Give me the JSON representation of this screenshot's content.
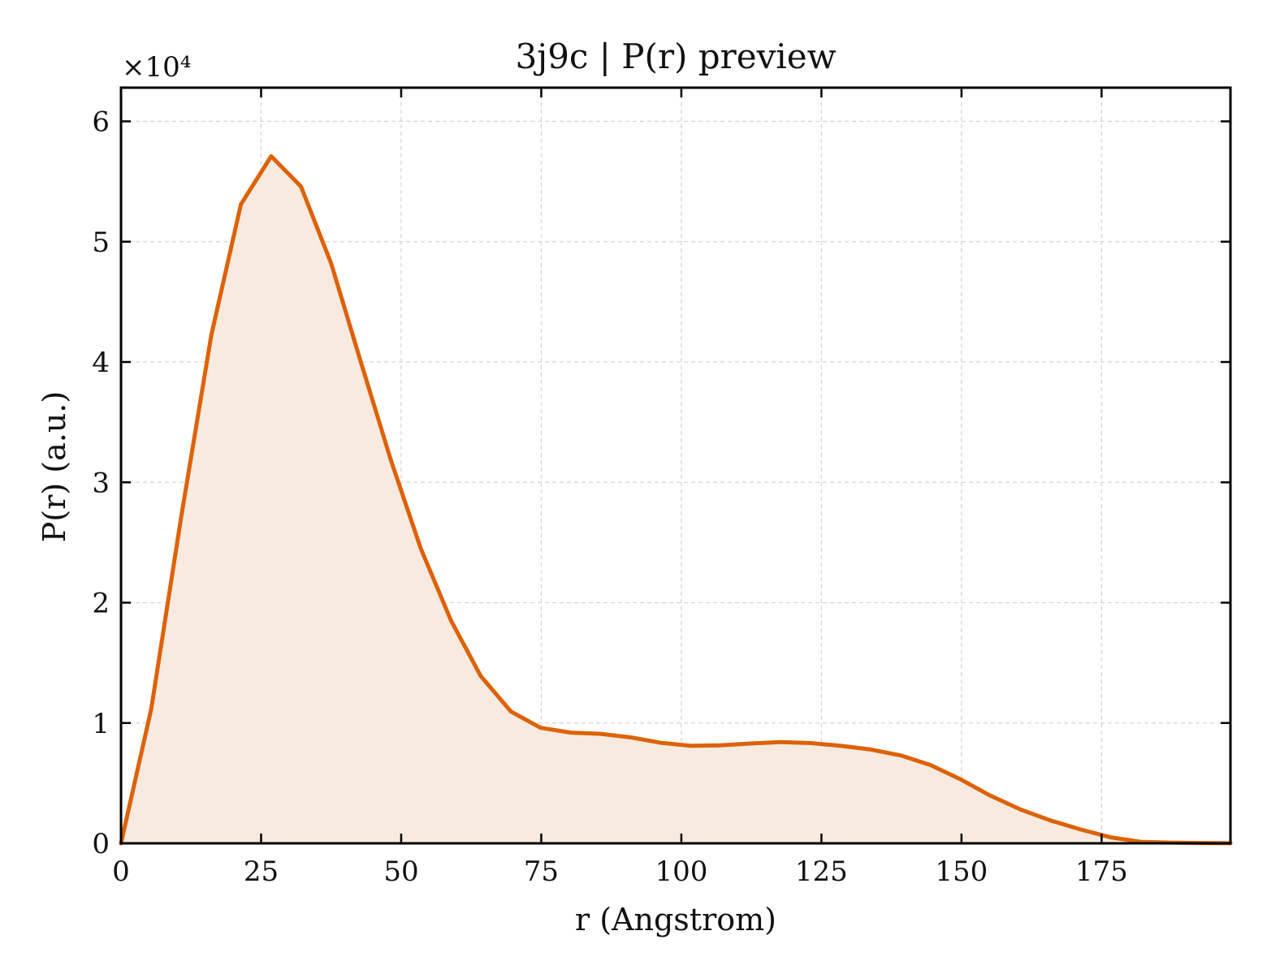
{
  "chart_data": {
    "type": "area",
    "title": "3j9c | P(r) preview",
    "xlabel": "r (Angstrom)",
    "ylabel": "P(r) (a.u.)",
    "y_multiplier_label": "×10⁴",
    "xlim": [
      0,
      198
    ],
    "ylim": [
      0,
      62800
    ],
    "x_ticks": [
      0,
      25,
      50,
      75,
      100,
      125,
      150,
      175
    ],
    "x_tick_labels": [
      "0",
      "25",
      "50",
      "75",
      "100",
      "125",
      "150",
      "175"
    ],
    "y_ticks": [
      0,
      10000,
      20000,
      30000,
      40000,
      50000,
      60000
    ],
    "y_tick_labels": [
      "0",
      "1",
      "2",
      "3",
      "4",
      "5",
      "6"
    ],
    "grid": true,
    "line_color": "#dd6207",
    "fill_color": "#f9eadf",
    "series": [
      {
        "x": [
          0,
          5.4,
          10.7,
          16.1,
          21.4,
          26.8,
          32.1,
          37.5,
          42.8,
          48.2,
          53.5,
          58.9,
          64.2,
          69.6,
          74.9,
          80.3,
          85.6,
          91.0,
          96.4,
          101.7,
          107.1,
          112.4,
          117.8,
          123.1,
          128.5,
          133.8,
          139.2,
          144.5,
          149.9,
          155.2,
          160.6,
          165.9,
          171.3,
          176.6,
          182.0,
          187.3,
          192.7,
          198.0
        ],
        "y": [
          0,
          11200,
          27000,
          42200,
          53100,
          57100,
          54600,
          48200,
          40000,
          31800,
          24500,
          18500,
          13900,
          10950,
          9600,
          9200,
          9100,
          8800,
          8350,
          8100,
          8150,
          8300,
          8420,
          8330,
          8100,
          7800,
          7300,
          6500,
          5300,
          3950,
          2800,
          1900,
          1150,
          500,
          130,
          60,
          30,
          10
        ]
      }
    ]
  }
}
